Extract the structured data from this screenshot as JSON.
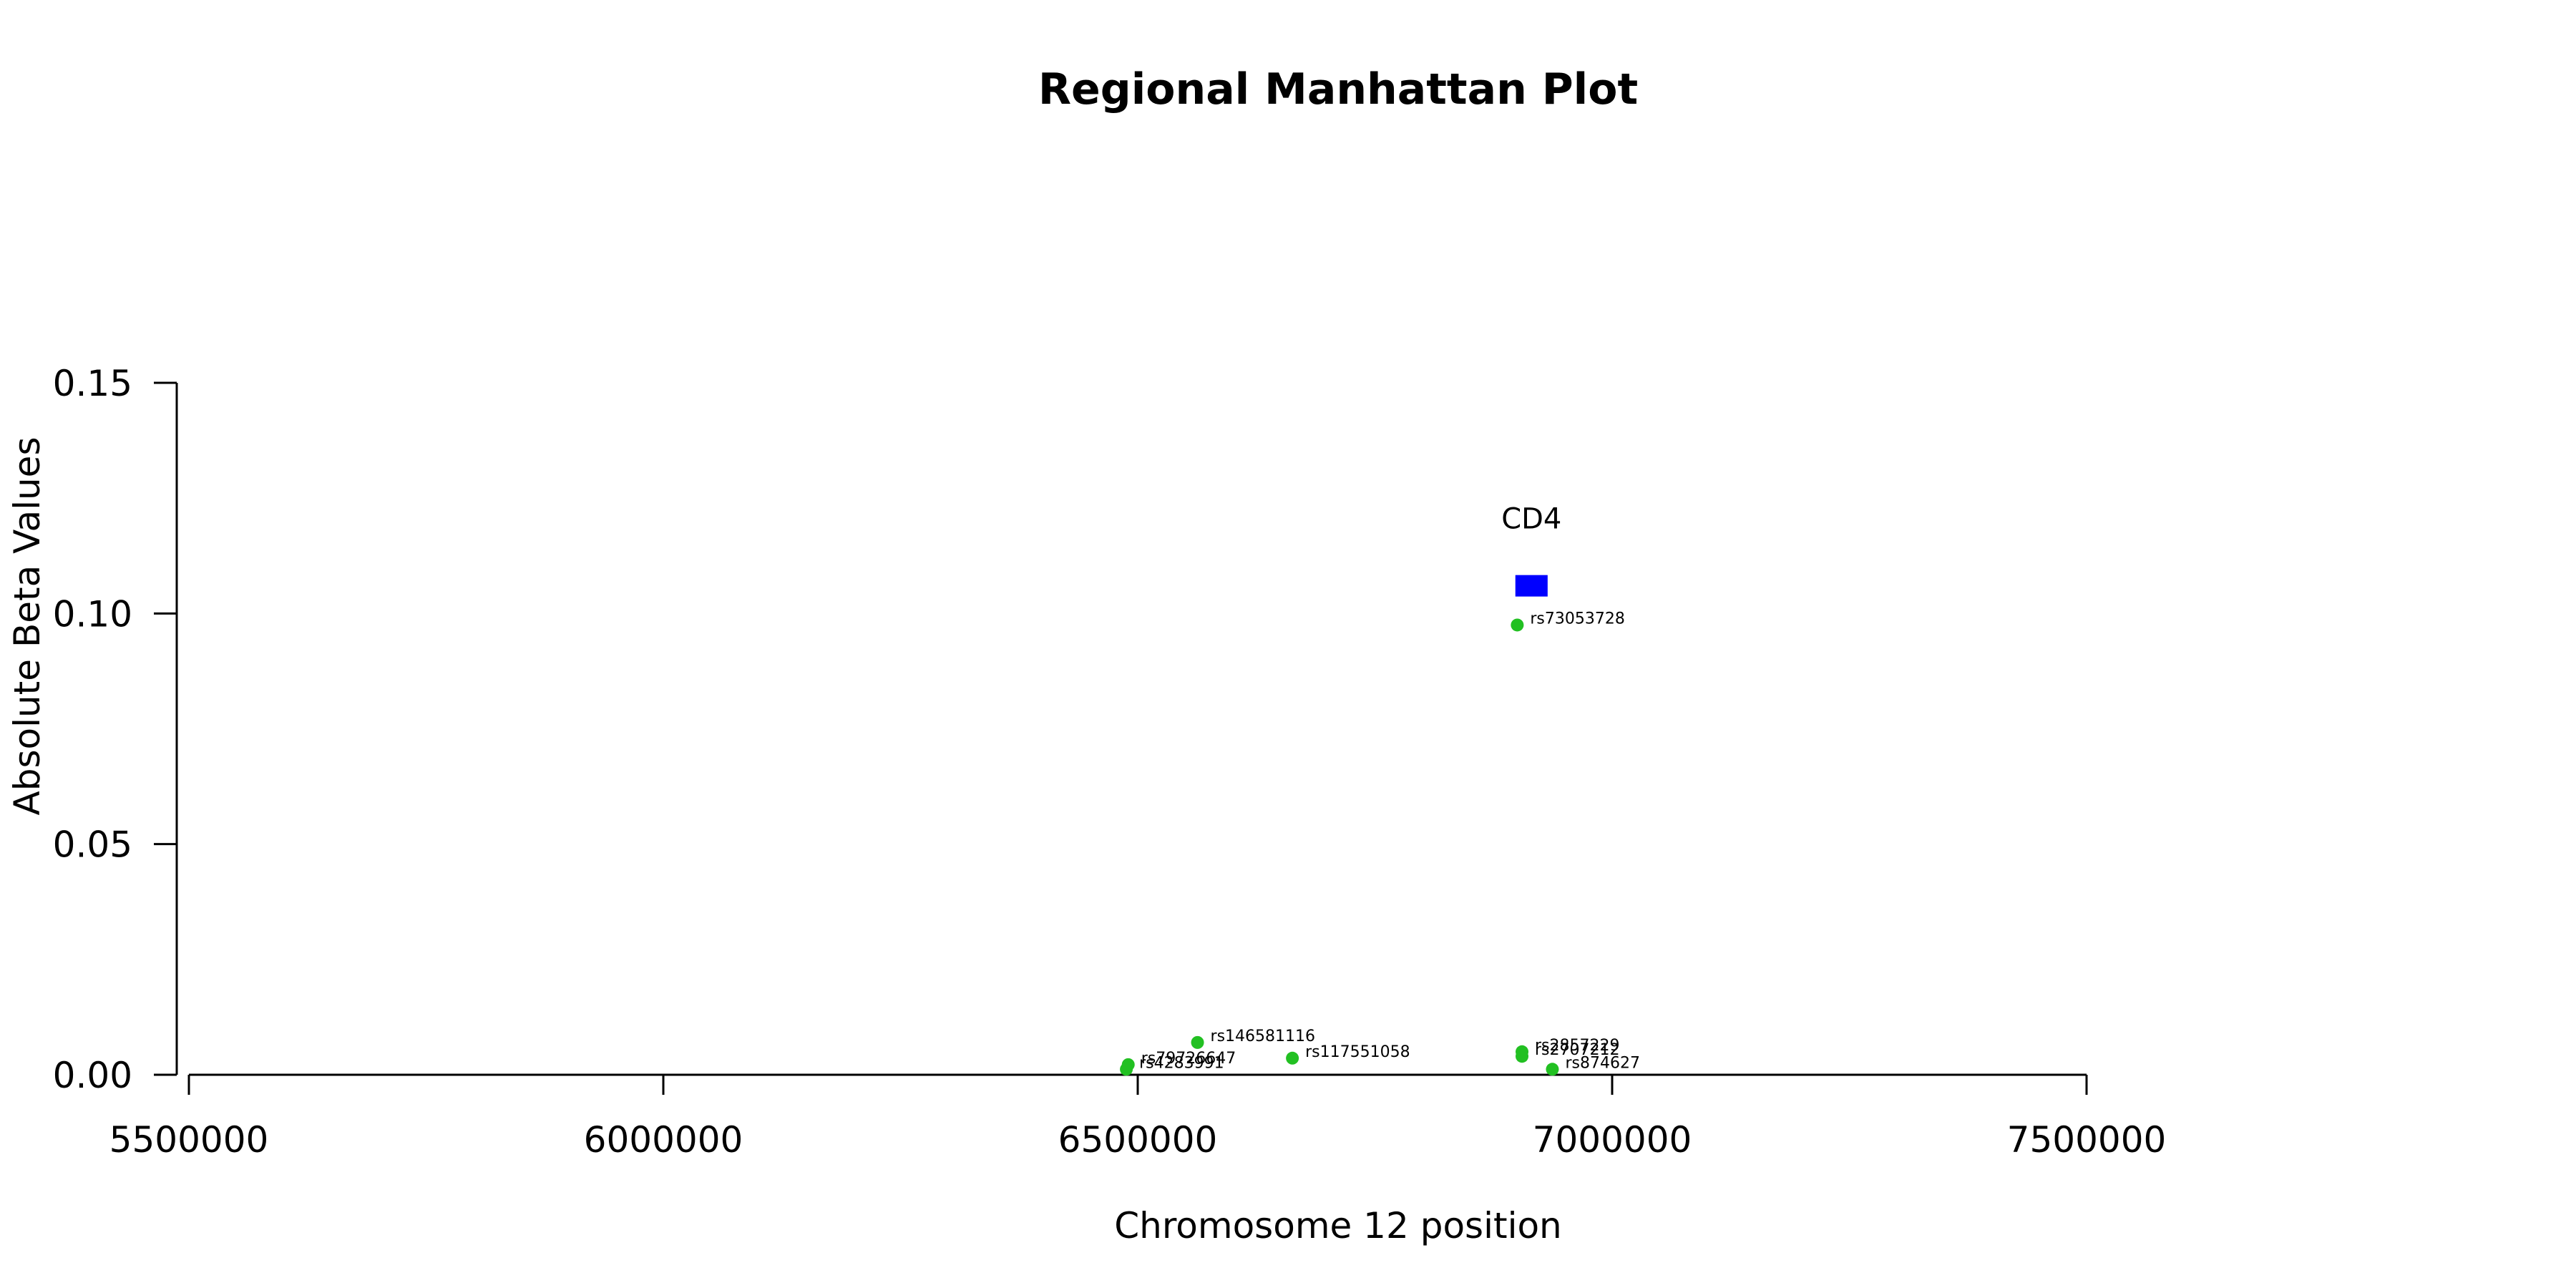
{
  "chart_data": {
    "type": "scatter",
    "title": "Regional Manhattan Plot",
    "xlabel": "Chromosome 12 position",
    "ylabel": "Absolute Beta Values",
    "xlim": [
      5500000,
      7500000
    ],
    "ylim": [
      0,
      0.15
    ],
    "x_ticks": [
      5500000,
      6000000,
      6500000,
      7000000,
      7500000
    ],
    "x_tick_labels": [
      "5500000",
      "6000000",
      "6500000",
      "7000000",
      "7500000"
    ],
    "y_ticks": [
      0.0,
      0.05,
      0.1,
      0.15
    ],
    "y_tick_labels": [
      "0.00",
      "0.05",
      "0.10",
      "0.15"
    ],
    "grid": false,
    "point_color": "#22c022",
    "gene_color": "#0000ff",
    "points": [
      {
        "label": "rs73053728",
        "x": 6900000,
        "y": 0.0975
      },
      {
        "label": "rs146581116",
        "x": 6563000,
        "y": 0.007
      },
      {
        "label": "rs117551058",
        "x": 6663000,
        "y": 0.0036
      },
      {
        "label": "rs79726647",
        "x": 6490000,
        "y": 0.0022
      },
      {
        "label": "rs4283991",
        "x": 6488000,
        "y": 0.0012
      },
      {
        "label": "rs2857229",
        "x": 6905000,
        "y": 0.005
      },
      {
        "label": "rs2707212",
        "x": 6905000,
        "y": 0.004
      },
      {
        "label": "rs874627",
        "x": 6937000,
        "y": 0.0012
      }
    ],
    "genes": [
      {
        "label": "CD4",
        "start": 6898000,
        "end": 6932000,
        "y": 0.106
      }
    ]
  }
}
